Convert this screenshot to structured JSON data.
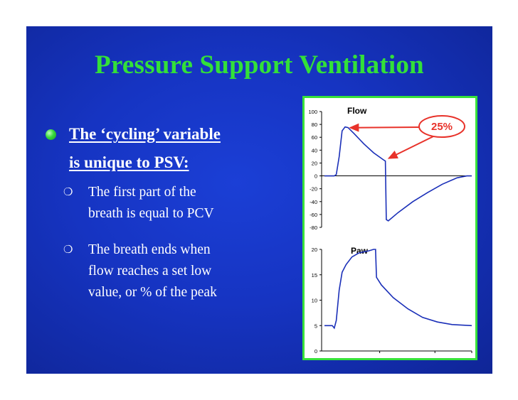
{
  "slide": {
    "title": "Pressure Support Ventilation",
    "bullet": {
      "line1": "The ‘cycling’ variable",
      "line2": "is unique to PSV:"
    },
    "subbullets": [
      {
        "line1": "The first part of the",
        "line2": "breath is equal to PCV"
      },
      {
        "line1": "The breath ends when",
        "line2": "flow reaches a set low",
        "line3": "value, or % of the peak"
      }
    ],
    "subbullet_marker": "❍",
    "colors": {
      "title": "#33e039",
      "background": "#1634c2",
      "chart_border": "#37e23a",
      "annotation": "#e8322a"
    }
  },
  "chart_data": [
    {
      "type": "line",
      "title": "Flow",
      "y_ticks": [
        100,
        80,
        60,
        40,
        20,
        0,
        -20,
        -40,
        -60,
        -80
      ],
      "ylim": [
        -80,
        100
      ],
      "annotation": "25%",
      "points": [
        [
          0,
          0
        ],
        [
          10,
          0
        ],
        [
          12,
          2
        ],
        [
          15,
          30
        ],
        [
          18,
          70
        ],
        [
          21,
          76
        ],
        [
          24,
          75
        ],
        [
          30,
          66
        ],
        [
          40,
          50
        ],
        [
          50,
          36
        ],
        [
          60,
          25
        ],
        [
          62,
          23
        ],
        [
          63,
          -68
        ],
        [
          65,
          -70
        ],
        [
          75,
          -57
        ],
        [
          90,
          -40
        ],
        [
          105,
          -26
        ],
        [
          120,
          -13
        ],
        [
          135,
          -3
        ],
        [
          145,
          0
        ],
        [
          150,
          0
        ]
      ]
    },
    {
      "type": "line",
      "title": "Paw",
      "y_ticks": [
        20,
        15,
        10,
        5,
        0
      ],
      "ylim": [
        0,
        20
      ],
      "points": [
        [
          0,
          5
        ],
        [
          8,
          5
        ],
        [
          10,
          4.5
        ],
        [
          12,
          6
        ],
        [
          15,
          12
        ],
        [
          18,
          15.5
        ],
        [
          22,
          17
        ],
        [
          28,
          18.5
        ],
        [
          35,
          19.3
        ],
        [
          45,
          19.7
        ],
        [
          50,
          20
        ],
        [
          52,
          20
        ],
        [
          53,
          14.5
        ],
        [
          58,
          13
        ],
        [
          70,
          10.5
        ],
        [
          85,
          8.3
        ],
        [
          100,
          6.6
        ],
        [
          115,
          5.7
        ],
        [
          130,
          5.2
        ],
        [
          150,
          5
        ]
      ]
    }
  ]
}
